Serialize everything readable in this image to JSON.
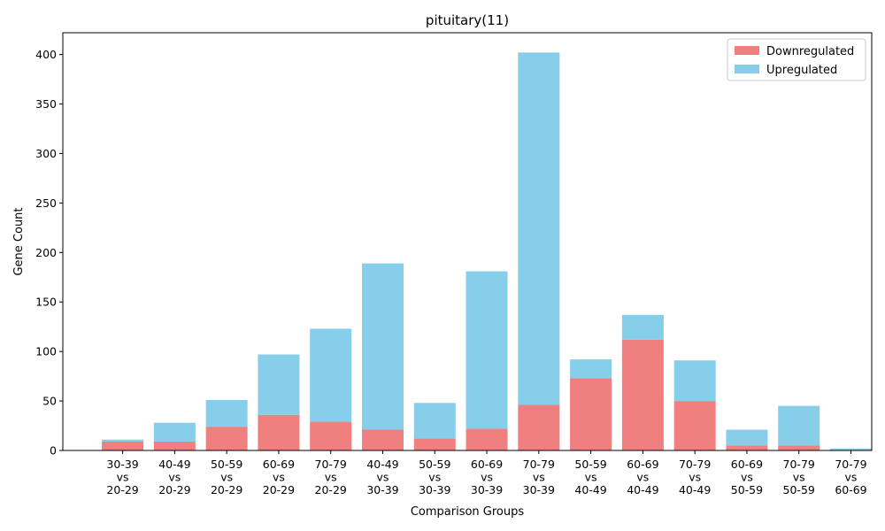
{
  "chart_data": {
    "type": "bar",
    "stacked": true,
    "title": "pituitary(11)",
    "xlabel": "Comparison Groups",
    "ylabel": "Gene Count",
    "ylim": [
      0,
      422
    ],
    "yticks": [
      0,
      50,
      100,
      150,
      200,
      250,
      300,
      350,
      400
    ],
    "legend_position": "top-right",
    "categories": [
      [
        "30-39",
        "vs",
        "20-29"
      ],
      [
        "40-49",
        "vs",
        "20-29"
      ],
      [
        "50-59",
        "vs",
        "20-29"
      ],
      [
        "60-69",
        "vs",
        "20-29"
      ],
      [
        "70-79",
        "vs",
        "20-29"
      ],
      [
        "40-49",
        "vs",
        "30-39"
      ],
      [
        "50-59",
        "vs",
        "30-39"
      ],
      [
        "60-69",
        "vs",
        "30-39"
      ],
      [
        "70-79",
        "vs",
        "30-39"
      ],
      [
        "50-59",
        "vs",
        "40-49"
      ],
      [
        "60-69",
        "vs",
        "40-49"
      ],
      [
        "70-79",
        "vs",
        "40-49"
      ],
      [
        "60-69",
        "vs",
        "50-59"
      ],
      [
        "70-79",
        "vs",
        "50-59"
      ],
      [
        "70-79",
        "vs",
        "60-69"
      ]
    ],
    "series": [
      {
        "name": "Downregulated",
        "color": "#f08080",
        "values": [
          9,
          9,
          24,
          36,
          29,
          21,
          12,
          22,
          46,
          73,
          112,
          50,
          5,
          5,
          0
        ]
      },
      {
        "name": "Upregulated",
        "color": "#87ceeb",
        "values": [
          2,
          19,
          27,
          61,
          94,
          168,
          36,
          159,
          356,
          19,
          25,
          41,
          16,
          40,
          2
        ]
      }
    ]
  }
}
